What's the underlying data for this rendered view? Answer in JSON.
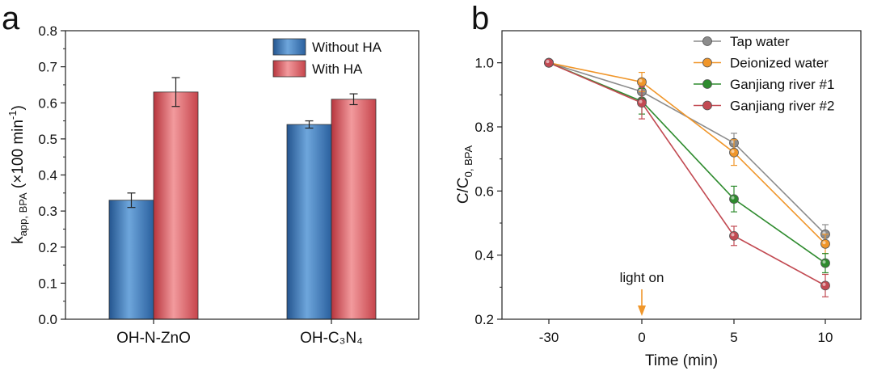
{
  "panels": {
    "a": "a",
    "b": "b"
  },
  "chart_data": [
    {
      "type": "bar",
      "panel": "a",
      "categories": [
        "OH-N-ZnO",
        "OH-C₃N₄"
      ],
      "series": [
        {
          "name": "Without HA",
          "values": [
            0.33,
            0.54
          ],
          "errors": [
            0.02,
            0.01
          ],
          "color": "#3f7fc4"
        },
        {
          "name": "With HA",
          "values": [
            0.63,
            0.61
          ],
          "errors": [
            0.04,
            0.015
          ],
          "color": "#e1666c"
        }
      ],
      "xlabel": "",
      "ylabel": "k",
      "ylabel_sub": "app, BPA",
      "ylabel_tail": " (×100 min",
      "ylabel_sup": "-1",
      "ylabel_close": ")",
      "ylim": [
        0,
        0.8
      ],
      "yticks": [
        "0.0",
        "0.1",
        "0.2",
        "0.3",
        "0.4",
        "0.5",
        "0.6",
        "0.7",
        "0.8"
      ],
      "legend_position": "top-right"
    },
    {
      "type": "line",
      "panel": "b",
      "x": [
        -30,
        0,
        5,
        10
      ],
      "xticks": [
        "-30",
        "0",
        "5",
        "10"
      ],
      "series": [
        {
          "name": "Tap water",
          "values": [
            1.0,
            0.91,
            0.75,
            0.465
          ],
          "errors": [
            0,
            0.02,
            0.03,
            0.03
          ],
          "color": "#8c8c8c"
        },
        {
          "name": "Deionized water",
          "values": [
            1.0,
            0.94,
            0.72,
            0.435
          ],
          "errors": [
            0,
            0.03,
            0.04,
            0.03
          ],
          "color": "#f0962a"
        },
        {
          "name": "Ganjiang river #1",
          "values": [
            1.0,
            0.88,
            0.575,
            0.375
          ],
          "errors": [
            0,
            0.04,
            0.04,
            0.03
          ],
          "color": "#2e8b2e"
        },
        {
          "name": "Ganjiang river #2",
          "values": [
            1.0,
            0.875,
            0.46,
            0.305
          ],
          "errors": [
            0,
            0.05,
            0.03,
            0.035
          ],
          "color": "#c24a52"
        }
      ],
      "xlabel": "Time (min)",
      "ylabel": "C/C",
      "ylabel_sub": "0, BPA",
      "ylim": [
        0.2,
        1.1
      ],
      "yticks": [
        "0.2",
        "0.4",
        "0.6",
        "0.8",
        "1.0"
      ],
      "annotation": "light on",
      "annotation_color": "#f0962a",
      "legend_position": "top-right"
    }
  ]
}
